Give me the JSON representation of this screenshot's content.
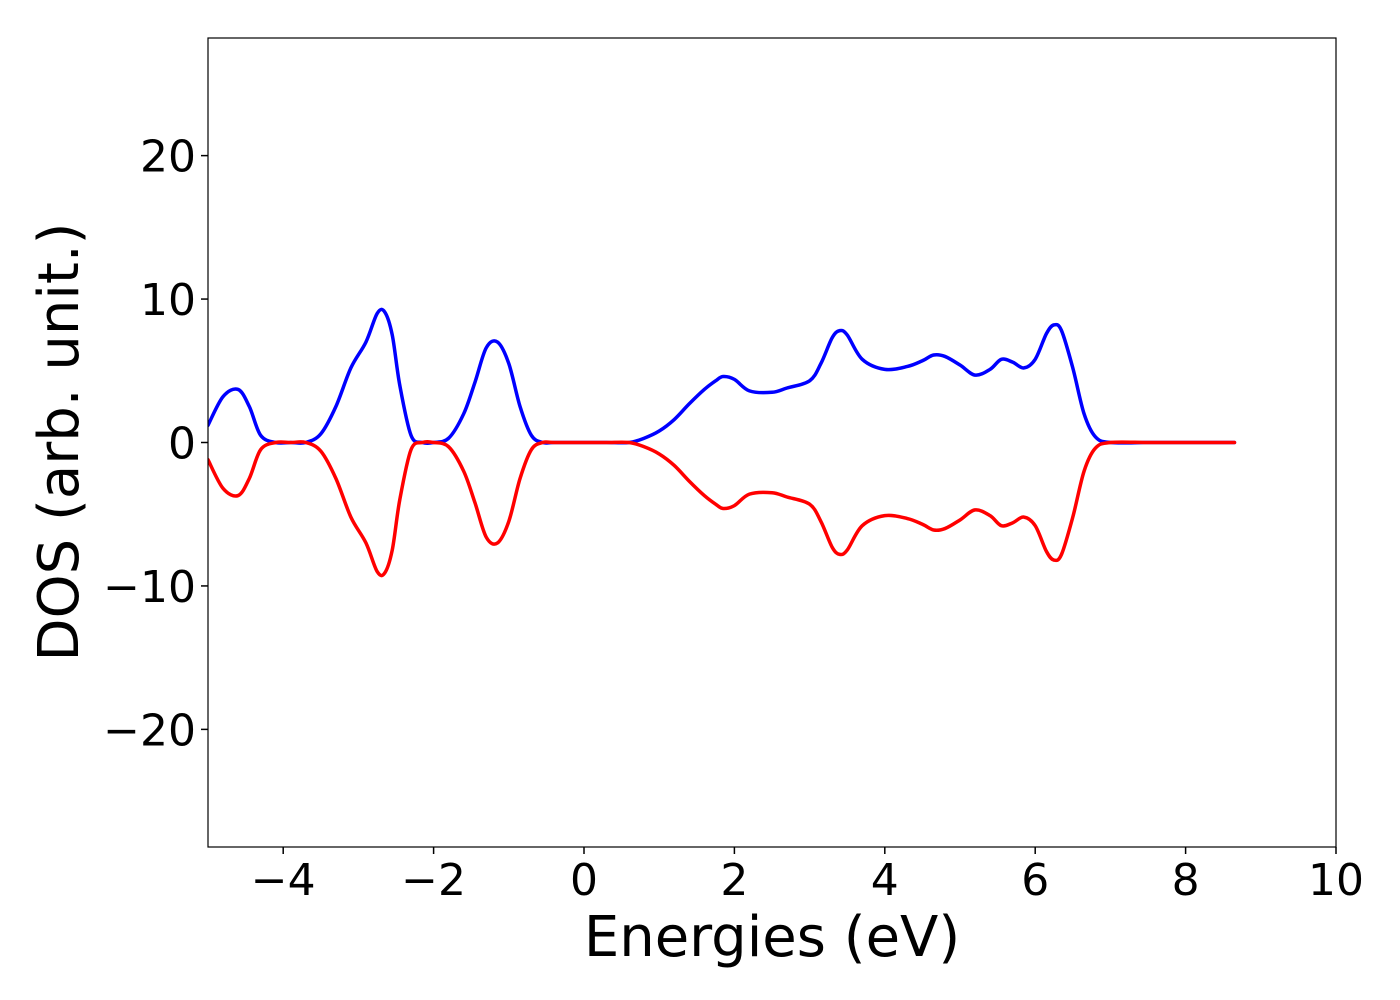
{
  "chart_data": {
    "type": "line",
    "title": "",
    "xlabel": "Energies (eV)",
    "ylabel": "DOS (arb. unit.)",
    "xlim": [
      -5,
      10
    ],
    "ylim": [
      -28.2,
      28.2
    ],
    "xticks": [
      -4,
      -2,
      0,
      2,
      4,
      6,
      8,
      10
    ],
    "xtick_labels": [
      "−4",
      "−2",
      "0",
      "2",
      "4",
      "6",
      "8",
      "10"
    ],
    "yticks": [
      -20,
      -10,
      0,
      10,
      20
    ],
    "ytick_labels": [
      "−20",
      "−10",
      "0",
      "10",
      "20"
    ],
    "grid": false,
    "legend": "none",
    "series": [
      {
        "color": "#0000ff",
        "x": [
          -5.0,
          -4.8,
          -4.6,
          -4.45,
          -4.3,
          -4.1,
          -3.9,
          -3.7,
          -3.5,
          -3.3,
          -3.1,
          -2.9,
          -2.75,
          -2.65,
          -2.55,
          -2.45,
          -2.3,
          -2.15,
          -2.0,
          -1.8,
          -1.6,
          -1.45,
          -1.3,
          -1.15,
          -1.0,
          -0.85,
          -0.7,
          -0.55,
          -0.4,
          0.0,
          0.3,
          0.6,
          0.8,
          1.0,
          1.2,
          1.4,
          1.6,
          1.75,
          1.85,
          2.0,
          2.2,
          2.5,
          2.7,
          3.0,
          3.15,
          3.3,
          3.4,
          3.5,
          3.7,
          4.0,
          4.3,
          4.5,
          4.65,
          4.8,
          5.0,
          5.2,
          5.4,
          5.55,
          5.7,
          5.85,
          6.0,
          6.15,
          6.25,
          6.35,
          6.5,
          6.65,
          6.8,
          7.0,
          7.5,
          8.0,
          8.65
        ],
        "y": [
          1.2,
          3.2,
          3.7,
          2.5,
          0.5,
          0.0,
          0.0,
          0.0,
          0.6,
          2.5,
          5.2,
          7.0,
          9.0,
          9.1,
          7.5,
          4.0,
          0.5,
          0.0,
          0.0,
          0.3,
          2.0,
          4.2,
          6.6,
          7.0,
          5.5,
          2.5,
          0.5,
          0.0,
          0.0,
          0.0,
          0.0,
          0.0,
          0.3,
          0.8,
          1.6,
          2.7,
          3.7,
          4.3,
          4.6,
          4.4,
          3.6,
          3.5,
          3.8,
          4.3,
          5.5,
          7.3,
          7.8,
          7.5,
          5.8,
          5.1,
          5.3,
          5.7,
          6.1,
          6.0,
          5.4,
          4.7,
          5.1,
          5.8,
          5.6,
          5.2,
          5.8,
          7.6,
          8.2,
          7.8,
          5.2,
          2.0,
          0.4,
          0.0,
          0.0,
          0.0,
          0.0
        ]
      },
      {
        "color": "#ff0000",
        "x": [
          -5.0,
          -4.8,
          -4.6,
          -4.45,
          -4.3,
          -4.1,
          -3.9,
          -3.7,
          -3.5,
          -3.3,
          -3.1,
          -2.9,
          -2.75,
          -2.65,
          -2.55,
          -2.45,
          -2.3,
          -2.15,
          -2.0,
          -1.8,
          -1.6,
          -1.45,
          -1.3,
          -1.15,
          -1.0,
          -0.85,
          -0.7,
          -0.55,
          -0.4,
          0.0,
          0.3,
          0.6,
          0.8,
          1.0,
          1.2,
          1.4,
          1.6,
          1.75,
          1.85,
          2.0,
          2.2,
          2.5,
          2.7,
          3.0,
          3.15,
          3.3,
          3.4,
          3.5,
          3.7,
          4.0,
          4.3,
          4.5,
          4.65,
          4.8,
          5.0,
          5.2,
          5.4,
          5.55,
          5.7,
          5.85,
          6.0,
          6.15,
          6.25,
          6.35,
          6.5,
          6.65,
          6.8,
          7.0,
          7.5,
          8.0,
          8.65
        ],
        "y": [
          -1.2,
          -3.2,
          -3.7,
          -2.5,
          -0.5,
          0.0,
          0.0,
          0.0,
          -0.6,
          -2.5,
          -5.2,
          -7.0,
          -9.0,
          -9.1,
          -7.5,
          -4.0,
          -0.5,
          0.0,
          0.0,
          -0.3,
          -2.0,
          -4.2,
          -6.6,
          -7.0,
          -5.5,
          -2.5,
          -0.5,
          0.0,
          0.0,
          0.0,
          0.0,
          0.0,
          -0.3,
          -0.8,
          -1.6,
          -2.7,
          -3.7,
          -4.3,
          -4.6,
          -4.4,
          -3.6,
          -3.5,
          -3.8,
          -4.3,
          -5.5,
          -7.3,
          -7.8,
          -7.5,
          -5.8,
          -5.1,
          -5.3,
          -5.7,
          -6.1,
          -6.0,
          -5.4,
          -4.7,
          -5.1,
          -5.8,
          -5.6,
          -5.2,
          -5.8,
          -7.6,
          -8.2,
          -7.8,
          -5.2,
          -2.0,
          -0.4,
          0.0,
          0.0,
          0.0,
          0.0
        ]
      }
    ]
  }
}
